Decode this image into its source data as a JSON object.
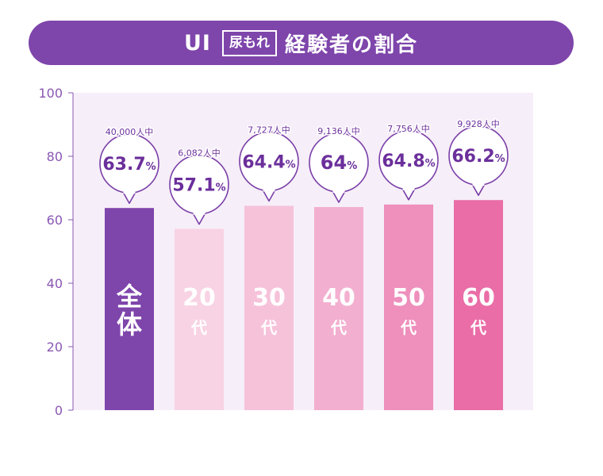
{
  "title": {
    "prefix": "UI",
    "boxed": "尿もれ",
    "rest": "経験者の割合"
  },
  "colors": {
    "banner": "#7E45AB",
    "plot_bg": "#F6EEF8",
    "axis": "#8A57B3",
    "callout_border": "#7A3FA8",
    "callout_text": "#6B2F9B"
  },
  "chart_data": {
    "type": "bar",
    "ylim": [
      0,
      100
    ],
    "yticks": [
      0,
      20,
      40,
      60,
      80,
      100
    ],
    "grid": false,
    "categories": [
      {
        "label": "全体",
        "label_lines": [
          "全",
          "体"
        ],
        "value": 63.7,
        "value_label": "63.7",
        "unit": "%",
        "sample": "40,000人中",
        "color": "#7E45AB"
      },
      {
        "label": "20代",
        "label_lines": [
          "20",
          "代"
        ],
        "value": 57.1,
        "value_label": "57.1",
        "unit": "%",
        "sample": "6,082人中",
        "color": "#F8D3E4"
      },
      {
        "label": "30代",
        "label_lines": [
          "30",
          "代"
        ],
        "value": 64.4,
        "value_label": "64.4",
        "unit": "%",
        "sample": "7,727人中",
        "color": "#F6C2DA"
      },
      {
        "label": "40代",
        "label_lines": [
          "40",
          "代"
        ],
        "value": 64.0,
        "value_label": "64",
        "unit": "%",
        "sample": "9,136人中",
        "color": "#F3AFCF"
      },
      {
        "label": "50代",
        "label_lines": [
          "50",
          "代"
        ],
        "value": 64.8,
        "value_label": "64.8",
        "unit": "%",
        "sample": "7,756人中",
        "color": "#EE8FBC"
      },
      {
        "label": "60代",
        "label_lines": [
          "60",
          "代"
        ],
        "value": 66.2,
        "value_label": "66.2",
        "unit": "%",
        "sample": "9,928人中",
        "color": "#EA6DA7"
      }
    ]
  }
}
